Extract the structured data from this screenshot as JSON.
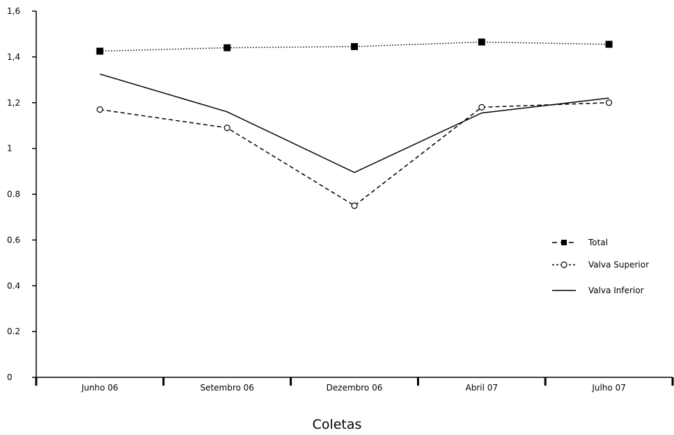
{
  "chart_data": {
    "type": "line",
    "title": "",
    "xlabel": "Coletas",
    "ylabel": "",
    "categories": [
      "Junho 06",
      "Setembro 06",
      "Dezembro 06",
      "Abril 07",
      "Julho 07"
    ],
    "ylim": [
      0,
      1.6
    ],
    "yticks": [
      0,
      0.2,
      0.4,
      0.6,
      0.8,
      1,
      1.2,
      1.4,
      1.6
    ],
    "ytick_labels": [
      "0",
      "0.2",
      "0.4",
      "0.6",
      "0.8",
      "1",
      "1,2",
      "1,4",
      "1,6"
    ],
    "grid": false,
    "legend_position": "right",
    "series": [
      {
        "name": "Total",
        "values": [
          1.425,
          1.44,
          1.445,
          1.465,
          1.455
        ],
        "color": "#000000",
        "line": "dotted",
        "marker": "filled-square",
        "legend_line": "dashed"
      },
      {
        "name": "Valva Superior",
        "values": [
          1.17,
          1.09,
          0.75,
          1.18,
          1.2
        ],
        "color": "#000000",
        "line": "dashed",
        "marker": "open-circle",
        "legend_line": "dashed"
      },
      {
        "name": "Valva Inferior",
        "values": [
          1.325,
          1.16,
          0.895,
          1.155,
          1.22
        ],
        "color": "#000000",
        "line": "solid",
        "marker": "none",
        "legend_line": "solid"
      }
    ]
  }
}
